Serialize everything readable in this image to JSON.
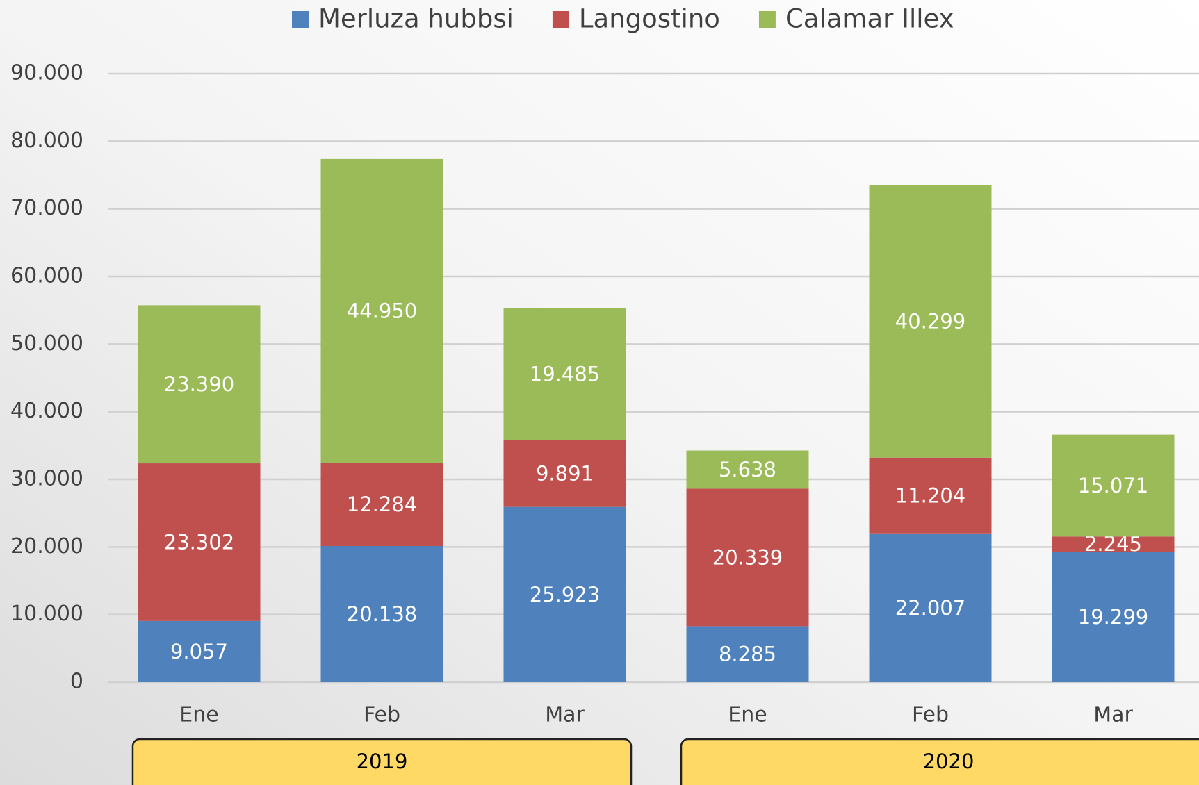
{
  "chart_data": {
    "type": "stacked_bar",
    "categories": [
      "Ene",
      "Feb",
      "Mar",
      "Ene",
      "Feb",
      "Mar"
    ],
    "groups": [
      "2019",
      "2020"
    ],
    "series": [
      {
        "name": "Merluza hubbsi",
        "color": "#4f81bd",
        "values": [
          9057,
          20138,
          25923,
          8285,
          22007,
          19299
        ],
        "value_labels": [
          "9.057",
          "20.138",
          "25.923",
          "8.285",
          "22.007",
          "19.299"
        ]
      },
      {
        "name": "Langostino",
        "color": "#c0504d",
        "values": [
          23302,
          12284,
          9891,
          20339,
          11204,
          2245
        ],
        "value_labels": [
          "23.302",
          "12.284",
          "9.891",
          "20.339",
          "11.204",
          "2.245"
        ]
      },
      {
        "name": "Calamar Illex",
        "color": "#9bbb59",
        "values": [
          23390,
          44950,
          19485,
          5638,
          40299,
          15071
        ],
        "value_labels": [
          "23.390",
          "44.950",
          "19.485",
          "5.638",
          "40.299",
          "15.071"
        ]
      }
    ],
    "ylim": [
      0,
      90000
    ],
    "yticks": [
      0,
      {
        "value": 10000,
        "label": "10.000"
      },
      {
        "value": 20000,
        "label": "20.000"
      },
      {
        "value": 30000,
        "label": "30.000"
      },
      {
        "value": 40000,
        "label": "40.000"
      },
      {
        "value": 50000,
        "label": "50.000"
      },
      {
        "value": 60000,
        "label": "60.000"
      },
      {
        "value": 70000,
        "label": "70.000"
      },
      {
        "value": 80000,
        "label": "80.000"
      },
      {
        "value": 90000,
        "label": "90.000"
      }
    ],
    "grid": true,
    "legend": "top"
  }
}
